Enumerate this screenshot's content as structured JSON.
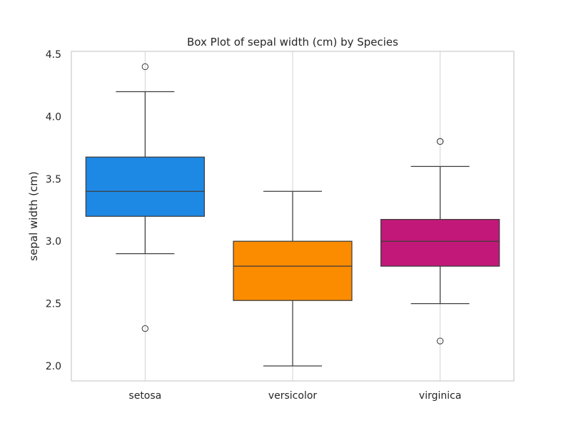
{
  "chart_data": {
    "type": "box",
    "title": "Box Plot of sepal width (cm) by Species",
    "xlabel": "",
    "ylabel": "sepal width (cm)",
    "ylim": [
      1.88,
      4.5
    ],
    "yticks": [
      2.0,
      2.5,
      3.0,
      3.5,
      4.0,
      4.5
    ],
    "ytick_labels": [
      "2.0",
      "2.5",
      "3.0",
      "3.5",
      "4.0",
      "4.5"
    ],
    "grid": "vertical",
    "categories": [
      "setosa",
      "versicolor",
      "virginica"
    ],
    "boxes": [
      {
        "category": "setosa",
        "color": "#1E88E5",
        "whisker_low": 2.9,
        "q1": 3.2,
        "median": 3.4,
        "q3": 3.675,
        "whisker_high": 4.2,
        "outliers": [
          4.4,
          2.3
        ]
      },
      {
        "category": "versicolor",
        "color": "#FB8C00",
        "whisker_low": 2.0,
        "q1": 2.525,
        "median": 2.8,
        "q3": 3.0,
        "whisker_high": 3.4,
        "outliers": []
      },
      {
        "category": "virginica",
        "color": "#C2187A",
        "whisker_low": 2.5,
        "q1": 2.8,
        "median": 3.0,
        "q3": 3.175,
        "whisker_high": 3.6,
        "outliers": [
          3.8,
          3.8,
          2.2
        ]
      }
    ]
  }
}
